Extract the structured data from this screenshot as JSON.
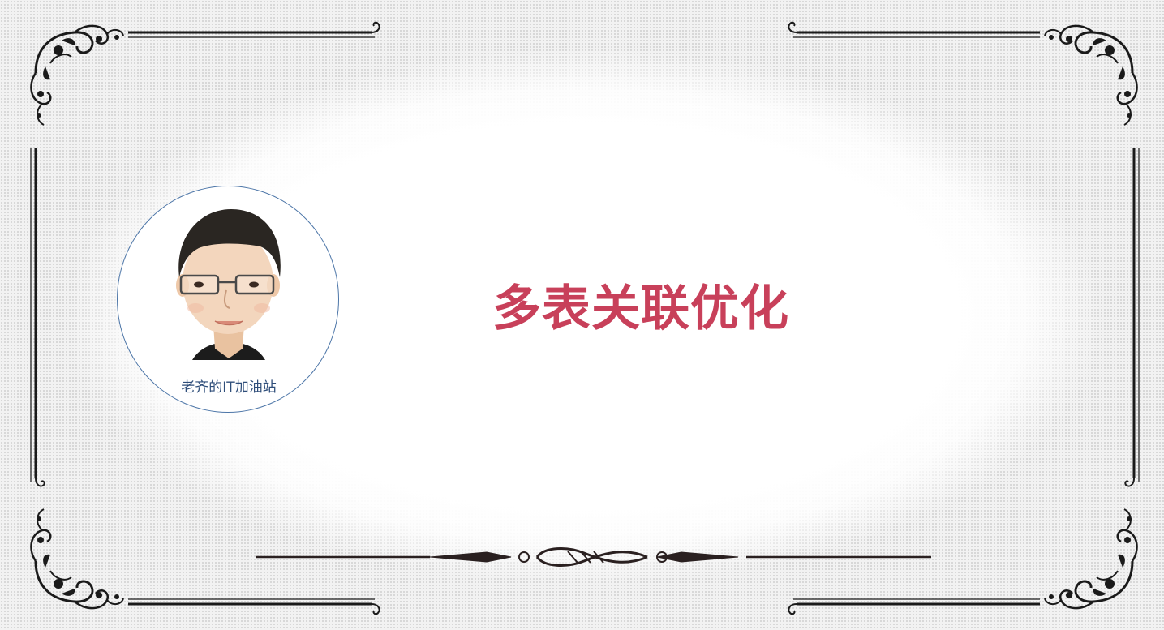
{
  "slide": {
    "title": "多表关联优化",
    "author_caption": "老齐的IT加油站"
  },
  "colors": {
    "title": "#c8405a",
    "caption": "#2f4e7a",
    "circle_border": "#4d76a8",
    "ornament": "#1a1a1a"
  },
  "icons": {
    "avatar": "cartoon-man-with-glasses",
    "corner": "flourish-ornament",
    "divider": "scroll-divider-ornament"
  }
}
